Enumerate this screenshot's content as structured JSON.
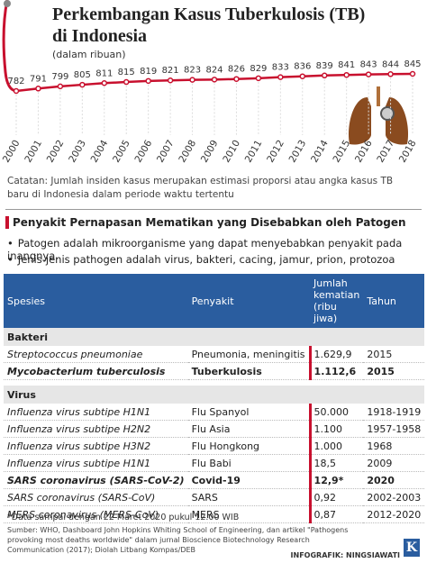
{
  "chart_data": {
    "type": "line",
    "title": "Perkembangan Kasus Tuberkulosis (TB) di Indonesia",
    "subtitle": "(dalam ribuan)",
    "categories": [
      "2000",
      "2001",
      "2002",
      "2003",
      "2004",
      "2005",
      "2006",
      "2007",
      "2008",
      "2009",
      "2010",
      "2011",
      "2012",
      "2013",
      "2014",
      "2015",
      "2016",
      "2017",
      "2018"
    ],
    "values": [
      782,
      791,
      799,
      805,
      811,
      815,
      819,
      821,
      823,
      824,
      826,
      829,
      833,
      836,
      839,
      841,
      843,
      844,
      845
    ],
    "color": "#c8102e"
  },
  "note": "Catatan: Jumlah insiden kasus merupakan estimasi proporsi atau angka kasus TB baru di Indonesia dalam periode waktu tertentu",
  "section": {
    "heading": "Penyakit Pernapasan Mematikan yang Disebabkan oleh Patogen",
    "bullets": [
      "Patogen adalah mikroorganisme yang dapat menyebabkan penyakit pada inangnya.",
      "Jenis-jenis pathogen adalah virus, bakteri, cacing, jamur, prion, protozoa"
    ]
  },
  "table": {
    "header": [
      "Spesies",
      "Penyakit",
      "Jumlah kematian (ribu jiwa)",
      "Tahun"
    ],
    "groups": [
      {
        "name": "Bakteri",
        "rows": [
          [
            "Streptococcus pneumoniae",
            "Pneumonia, meningitis",
            "1.629,9",
            "2015"
          ],
          [
            "Mycobacterium tuberculosis",
            "Tuberkulosis",
            "1.112,6",
            "2015"
          ]
        ]
      },
      {
        "name": "Virus",
        "rows": [
          [
            "Influenza virus subtipe H1N1",
            "Flu Spanyol",
            "50.000",
            "1918-1919"
          ],
          [
            "Influenza virus subtipe H2N2",
            "Flu Asia",
            "1.100",
            "1957-1958"
          ],
          [
            "Influenza virus subtipe H3N2",
            "Flu Hongkong",
            "1.000",
            "1968"
          ],
          [
            "Influenza virus subtipe H1N1",
            "Flu Babi",
            "18,5",
            "2009"
          ],
          [
            "SARS coronavirus (SARS-CoV-2)",
            "Covid-19",
            "12,9*",
            "2020"
          ],
          [
            "SARS coronavirus (SARS-CoV)",
            "SARS",
            "0,92",
            "2002-2003"
          ],
          [
            "MERS coronavirus (MERS-CoV)",
            "MERS",
            "0,87",
            "2012-2020"
          ]
        ]
      }
    ]
  },
  "footnote": "*Data sampai dengan 22 Maret 2020 pukul 12.00 WIB",
  "source": "Sumber: WHO, Dashboard John Hopkins Whiting School of Engineering, dan artikel \"Pathogens provoking most deaths worldwide\" dalam jurnal Bioscience Biotechnology Research Communication (2017); Diolah Litbang Kompas/DEB",
  "credit": "INFOGRAFIK: NINGSIAWATI",
  "logo": "K"
}
